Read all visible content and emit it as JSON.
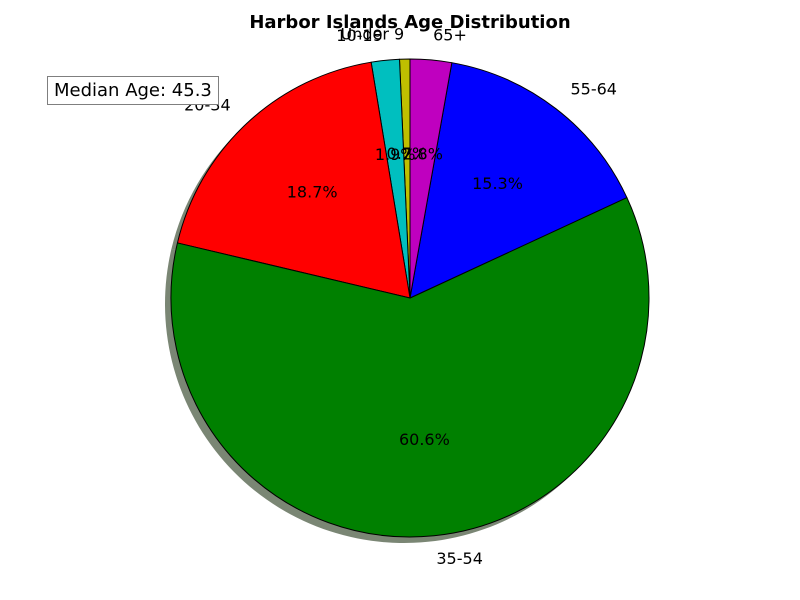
{
  "chart_data": {
    "type": "pie",
    "title": "Harbor Islands Age Distribution",
    "categories": [
      "Under 9",
      "10-19",
      "20-34",
      "35-54",
      "55-64",
      "65+"
    ],
    "values": [
      0.7,
      1.9,
      18.7,
      60.6,
      15.3,
      2.8
    ],
    "percent_labels": [
      "0.7%",
      "1.9%",
      "18.7%",
      "60.6%",
      "15.3%",
      "2.8%"
    ],
    "colors": [
      "#bfbf00",
      "#00bfbf",
      "#ff0000",
      "#008000",
      "#0000ff",
      "#bf00bf"
    ],
    "shadow": true,
    "annotation": "Median Age: 45.3"
  }
}
